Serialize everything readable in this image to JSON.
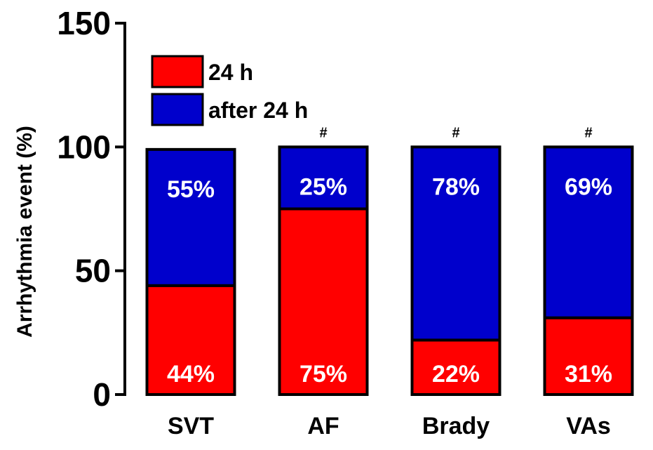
{
  "chart_data": {
    "type": "bar",
    "stacked": true,
    "ylabel": "Arrhythmia event (%)",
    "ylim": [
      0,
      150
    ],
    "yticks": [
      0,
      50,
      100,
      150
    ],
    "grid": false,
    "legend_position": "top-left",
    "categories": [
      "SVT",
      "AF",
      "Brady",
      "VAs"
    ],
    "series": [
      {
        "name": "24 h",
        "color": "#ff0000",
        "values": [
          44,
          75,
          22,
          31
        ],
        "labels": [
          "44%",
          "75%",
          "22%",
          "31%"
        ]
      },
      {
        "name": "after 24 h",
        "color": "#0000cc",
        "values": [
          55,
          25,
          78,
          69
        ],
        "labels": [
          "55%",
          "25%",
          "78%",
          "69%"
        ]
      }
    ],
    "annotations": [
      "",
      "#",
      "#",
      "#"
    ]
  }
}
